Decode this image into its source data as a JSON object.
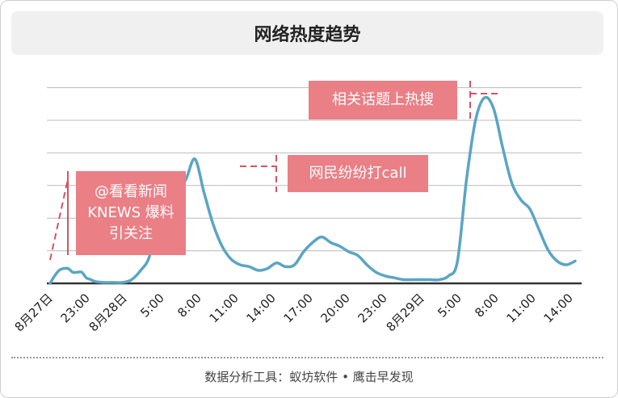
{
  "chart_data": {
    "type": "line",
    "title": "网络热度趋势",
    "x_ticks": [
      "8月27日",
      "23:00",
      "8月28日",
      "5:00",
      "8:00",
      "11:00",
      "14:00",
      "17:00",
      "20:00",
      "23:00",
      "8月29日",
      "5:00",
      "8:00",
      "11:00",
      "14:00"
    ],
    "grid": true,
    "series": [
      {
        "color": "#5aa5c4",
        "points": [
          [
            0,
            0
          ],
          [
            0.5,
            4
          ],
          [
            1,
            7
          ],
          [
            1.5,
            8
          ],
          [
            2,
            8
          ],
          [
            2.5,
            6
          ],
          [
            3,
            6
          ],
          [
            3.5,
            6
          ],
          [
            4,
            3
          ],
          [
            4.5,
            2
          ],
          [
            5,
            1
          ],
          [
            6,
            0.5
          ],
          [
            7,
            0.5
          ],
          [
            8,
            0.5
          ],
          [
            9,
            2
          ],
          [
            10,
            7
          ],
          [
            11,
            15
          ],
          [
            12,
            40
          ],
          [
            13,
            46
          ],
          [
            14,
            50
          ],
          [
            15,
            56
          ],
          [
            16,
            67
          ],
          [
            17,
            49
          ],
          [
            18,
            32
          ],
          [
            19,
            20
          ],
          [
            20,
            13
          ],
          [
            21,
            10
          ],
          [
            22,
            9
          ],
          [
            23,
            7
          ],
          [
            24,
            8
          ],
          [
            25,
            11
          ],
          [
            26,
            9
          ],
          [
            27,
            10
          ],
          [
            28,
            17
          ],
          [
            29,
            22
          ],
          [
            30,
            25
          ],
          [
            31,
            22
          ],
          [
            32,
            20
          ],
          [
            33,
            17
          ],
          [
            34,
            15
          ],
          [
            35,
            10
          ],
          [
            36,
            6
          ],
          [
            37,
            4
          ],
          [
            38,
            3
          ],
          [
            39,
            2
          ],
          [
            40,
            2
          ],
          [
            41,
            2
          ],
          [
            42,
            2
          ],
          [
            43,
            2
          ],
          [
            44,
            4
          ],
          [
            45,
            12
          ],
          [
            46,
            56
          ],
          [
            47,
            88
          ],
          [
            48,
            100
          ],
          [
            49,
            94
          ],
          [
            50,
            73
          ],
          [
            51,
            54
          ],
          [
            52,
            45
          ],
          [
            53,
            40
          ],
          [
            54,
            29
          ],
          [
            55,
            18
          ],
          [
            56,
            12
          ],
          [
            57,
            10
          ],
          [
            58,
            12
          ]
        ]
      }
    ],
    "annotations": [
      {
        "text": "@看看新闻KNEWS 爆料引关注"
      },
      {
        "text": "网民纷纷打call"
      },
      {
        "text": "相关话题上热搜"
      }
    ]
  },
  "footer": "数据分析工具：蚁坊软件 • 鹰击早发现",
  "colors": {
    "line": "#5aa5c4",
    "annotation_bg": "#ea7f86",
    "annotation_marker": "#d9535e",
    "grid": "#bbbbbb",
    "axis": "#333333"
  }
}
